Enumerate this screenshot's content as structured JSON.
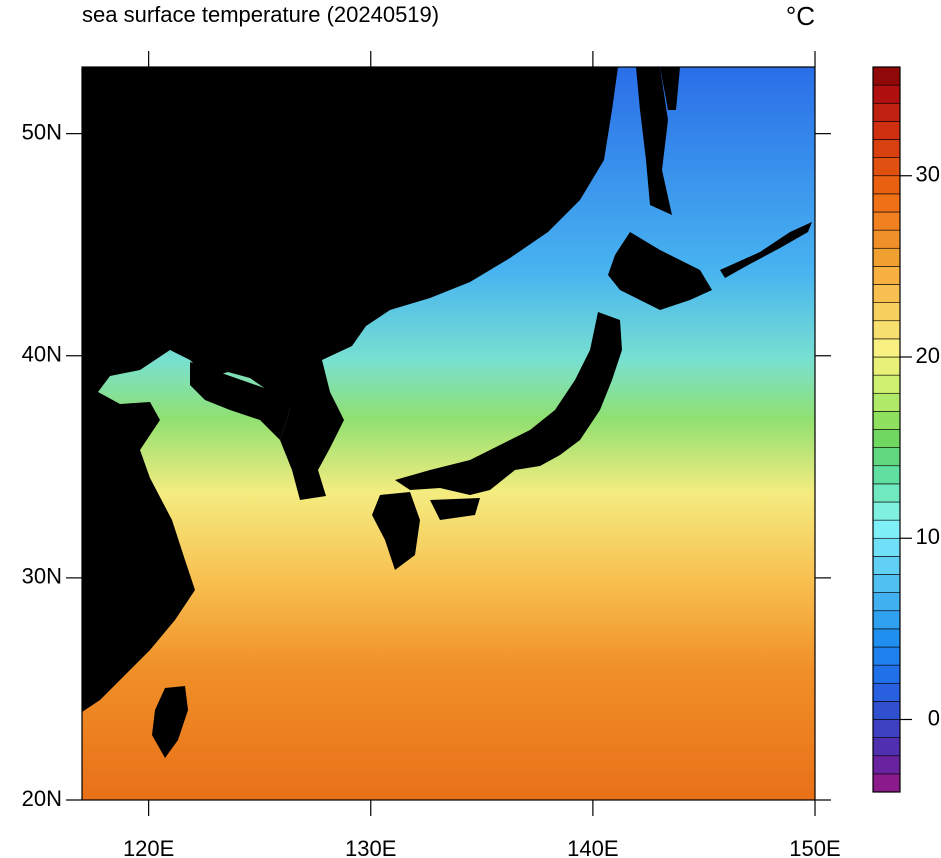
{
  "chart_data": {
    "type": "map",
    "title": "sea surface temperature (20240519)",
    "units": "°C",
    "xlim": [
      117,
      150
    ],
    "ylim": [
      20,
      53
    ],
    "xticks": [
      {
        "value": 120,
        "label": "120E"
      },
      {
        "value": 130,
        "label": "130E"
      },
      {
        "value": 140,
        "label": "140E"
      },
      {
        "value": 150,
        "label": "150E"
      }
    ],
    "yticks": [
      {
        "value": 20,
        "label": "20N"
      },
      {
        "value": 30,
        "label": "30N"
      },
      {
        "value": 40,
        "label": "40N"
      },
      {
        "value": 50,
        "label": "50N"
      }
    ],
    "clim": [
      -4,
      36
    ],
    "cticks": [
      0,
      10,
      20,
      30
    ],
    "colormap": [
      "#8b1a8b",
      "#6a23a0",
      "#5030b0",
      "#3d40c0",
      "#3050d0",
      "#2860e0",
      "#2070ea",
      "#1f80f0",
      "#2090f0",
      "#30a0f0",
      "#40b0f0",
      "#50c0f0",
      "#60d0f5",
      "#70e0f8",
      "#80f0f8",
      "#80f0e0",
      "#70e8c0",
      "#60e0a0",
      "#60d880",
      "#70d860",
      "#90e060",
      "#b0e868",
      "#d0f070",
      "#e8f078",
      "#f8f080",
      "#f8e070",
      "#f8d060",
      "#f8c050",
      "#f8b040",
      "#f0a030",
      "#f09028",
      "#f08020",
      "#f07018",
      "#e86010",
      "#e05010",
      "#d84010",
      "#d03010",
      "#c02010",
      "#b01010",
      "#900808"
    ]
  }
}
